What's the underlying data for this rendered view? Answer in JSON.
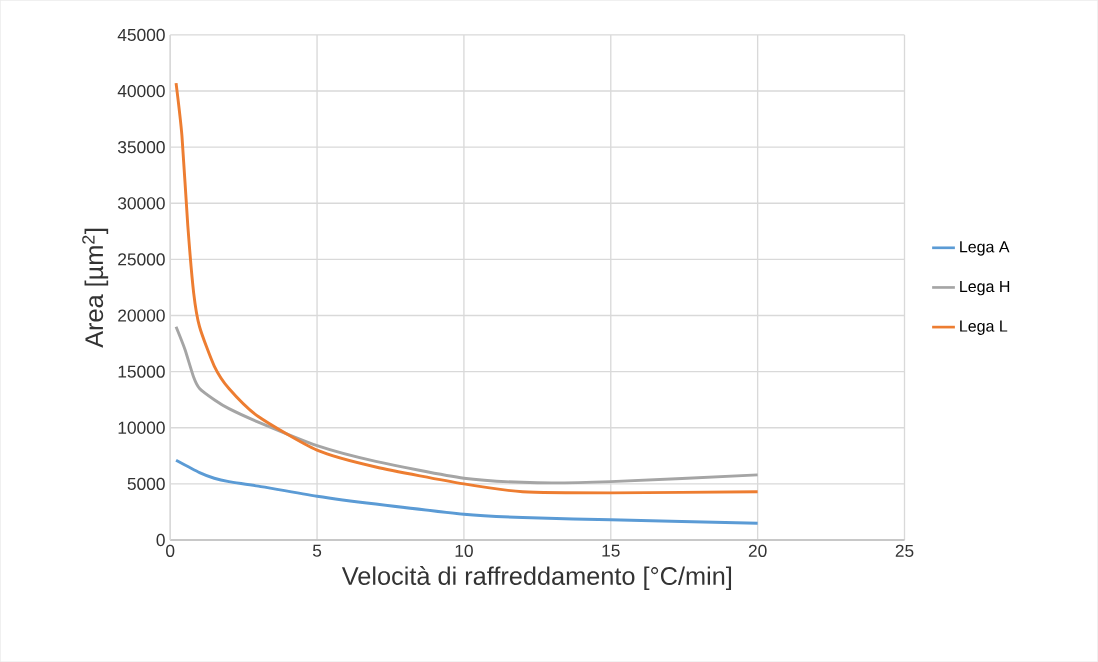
{
  "chart_data": {
    "type": "line",
    "xlabel": "Velocità di raffreddamento [°C/min]",
    "ylabel": "Area [µm$^{2}$]",
    "xlim": [
      0,
      25
    ],
    "ylim": [
      0,
      45000
    ],
    "xticks": [
      0,
      5,
      10,
      15,
      20,
      25
    ],
    "yticks": [
      0,
      5000,
      10000,
      15000,
      20000,
      25000,
      30000,
      35000,
      40000,
      45000
    ],
    "grid": true,
    "legend": "right",
    "marker": "none",
    "line_style": "solid",
    "series": [
      {
        "name": "Lega A",
        "color": "#5b9bd5",
        "x": [
          0.2,
          1,
          1.5,
          2,
          3,
          5,
          7,
          10,
          12,
          15,
          20
        ],
        "values": [
          7100,
          6000,
          5500,
          5200,
          4800,
          3900,
          3200,
          2300,
          2000,
          1800,
          1500
        ]
      },
      {
        "name": "Lega H",
        "color": "#a5a5a5",
        "x": [
          0.2,
          0.5,
          0.8,
          1,
          1.5,
          2,
          3,
          5,
          7,
          10,
          12.5,
          15,
          20
        ],
        "values": [
          19000,
          17000,
          14500,
          13500,
          12500,
          11700,
          10500,
          8400,
          7000,
          5500,
          5100,
          5200,
          5800
        ]
      },
      {
        "name": "Lega L",
        "color": "#ed7d31",
        "x": [
          0.2,
          0.4,
          0.6,
          0.8,
          1,
          1.5,
          2,
          3,
          5,
          7,
          10,
          12,
          15,
          20
        ],
        "values": [
          40700,
          36000,
          28000,
          22000,
          19000,
          15500,
          13500,
          11000,
          8000,
          6500,
          5000,
          4300,
          4200,
          4300
        ]
      }
    ]
  }
}
